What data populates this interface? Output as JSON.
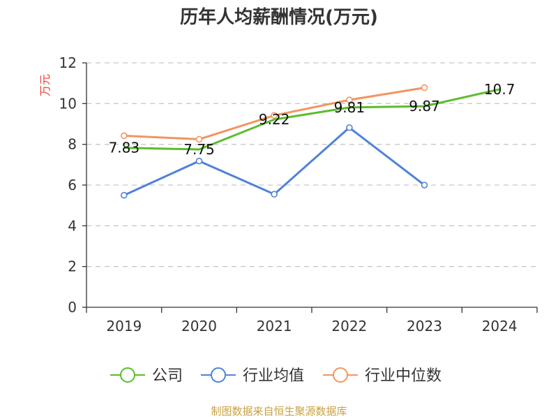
{
  "chart_data": {
    "type": "line",
    "title": "历年人均薪酬情况(万元)",
    "ylabel": "万元",
    "xlabel": "",
    "categories": [
      "2019",
      "2020",
      "2021",
      "2022",
      "2023",
      "2024"
    ],
    "ylim": [
      0,
      12
    ],
    "yticks": [
      0,
      2,
      4,
      6,
      8,
      10,
      12
    ],
    "grid": true,
    "legend_position": "bottom",
    "series": [
      {
        "name": "公司",
        "color": "#5bbd2b",
        "values": [
          7.83,
          7.75,
          9.22,
          9.81,
          9.87,
          10.7
        ],
        "labels": [
          "7.83",
          "7.75",
          "9.22",
          "9.81",
          "9.87",
          "10.7"
        ]
      },
      {
        "name": "行业均值",
        "color": "#4f82d8",
        "values": [
          5.5,
          7.18,
          5.55,
          8.82,
          6.0,
          null
        ]
      },
      {
        "name": "行业中位数",
        "color": "#f29560",
        "values": [
          8.42,
          8.25,
          9.42,
          10.18,
          10.78,
          null
        ]
      }
    ],
    "source": "制图数据来自恒生聚源数据库"
  }
}
